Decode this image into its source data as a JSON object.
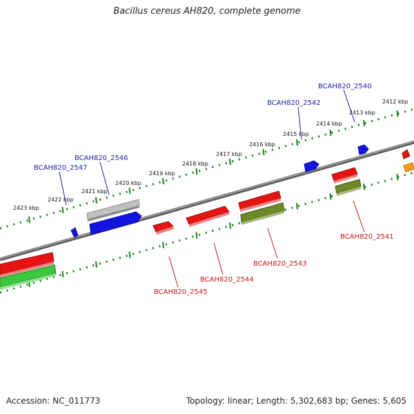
{
  "title": "Bacillus cereus AH820, complete genome",
  "footer": {
    "accession": "Accession: NC_011773",
    "summary": "Topology: linear; Length: 5,302,683 bp; Genes: 5,605"
  },
  "colors": {
    "backbone": "#8a8a8a",
    "ticks": "#1a7a1a",
    "label_top": "#1a1aa8",
    "label_bottom": "#c81414",
    "gene_red": "#e81414",
    "gene_blue": "#1414e0",
    "gene_grey": "#b4b4b4",
    "gene_olive": "#6e8a28",
    "gene_green": "#3cc83c",
    "gene_orange": "#ff9a14"
  },
  "scale_labels": [
    "2412 kbp",
    "2413 kbp",
    "2414 kbp",
    "2415 kbp",
    "2416 kbp",
    "2417 kbp",
    "2418 kbp",
    "2419 kbp",
    "2420 kbp",
    "2421 kbp",
    "2422 kbp",
    "2423 kbp"
  ],
  "gene_labels": {
    "top": [
      "BCAH820_2540",
      "BCAH820_2542",
      "BCAH820_2546",
      "BCAH820_2547"
    ],
    "bottom": [
      "BCAH820_2541",
      "BCAH820_2543",
      "BCAH820_2544",
      "BCAH820_2545"
    ]
  }
}
